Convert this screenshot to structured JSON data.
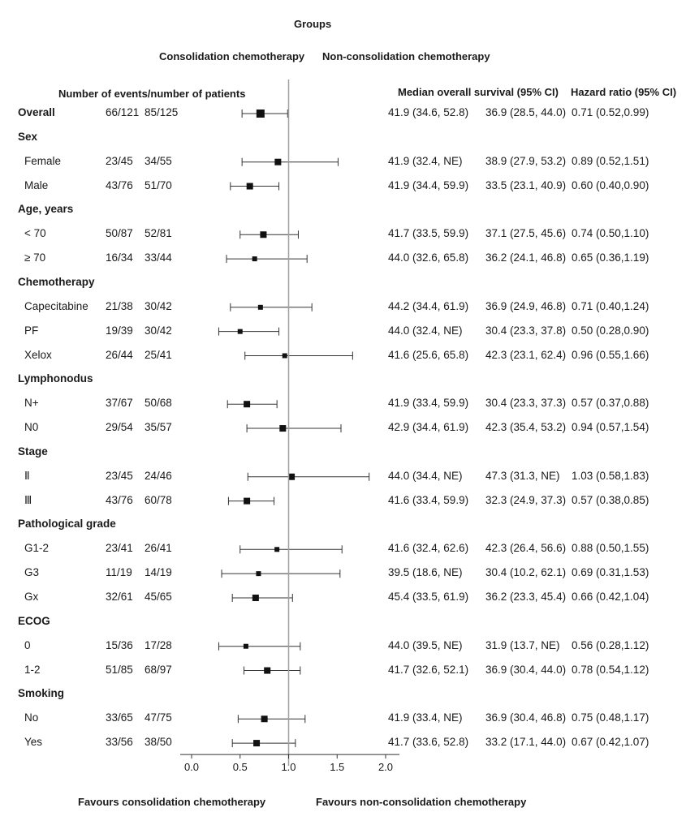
{
  "header": {
    "groups_title": "Groups",
    "consolidation_label": "Consolidation chemotherapy",
    "nonconsolidation_label": "Non-consolidation chemotherapy",
    "events_label": "Number of events/number of patients",
    "median_label": "Median overall survival (95% CI)",
    "hr_label": "Hazard ratio (95% CI)"
  },
  "footer": {
    "favours_left": "Favours consolidation chemotherapy",
    "favours_right": "Favours non-consolidation chemotherapy"
  },
  "chart_data": {
    "type": "forest",
    "xlabel": "",
    "xlim": [
      0.0,
      2.0
    ],
    "xticks": [
      "0.0",
      "0.5",
      "1.0",
      "1.5",
      "2.0"
    ],
    "reference_line": 1.0,
    "rows": [
      {
        "kind": "subgroup",
        "label": "Overall",
        "bold": true,
        "events_c": "66/121",
        "events_n": "85/125",
        "median_c": "41.9 (34.6, 52.8)",
        "median_n": "36.9 (28.5, 44.0)",
        "hr_text": "0.71 (0.52,0.99)",
        "hr": 0.71,
        "lo": 0.52,
        "hi": 0.99,
        "box": "large"
      },
      {
        "kind": "group",
        "label": "Sex"
      },
      {
        "kind": "subgroup",
        "label": "Female",
        "events_c": "23/45",
        "events_n": "34/55",
        "median_c": "41.9 (32.4, NE)",
        "median_n": "38.9 (27.9, 53.2)",
        "hr_text": "0.89 (0.52,1.51)",
        "hr": 0.89,
        "lo": 0.52,
        "hi": 1.51,
        "box": "medium"
      },
      {
        "kind": "subgroup",
        "label": "Male",
        "events_c": "43/76",
        "events_n": "51/70",
        "median_c": "41.9 (34.4, 59.9)",
        "median_n": "33.5 (23.1, 40.9)",
        "hr_text": "0.60 (0.40,0.90)",
        "hr": 0.6,
        "lo": 0.4,
        "hi": 0.9,
        "box": "medium"
      },
      {
        "kind": "group",
        "label": "Age, years"
      },
      {
        "kind": "subgroup",
        "label": "< 70",
        "events_c": "50/87",
        "events_n": "52/81",
        "median_c": "41.7 (33.5, 59.9)",
        "median_n": "37.1 (27.5, 45.6)",
        "hr_text": "0.74 (0.50,1.10)",
        "hr": 0.74,
        "lo": 0.5,
        "hi": 1.1,
        "box": "medium"
      },
      {
        "kind": "subgroup",
        "label": "≥ 70",
        "events_c": "16/34",
        "events_n": "33/44",
        "median_c": "44.0 (32.6, 65.8)",
        "median_n": "36.2 (24.1, 46.8)",
        "hr_text": "0.65 (0.36,1.19)",
        "hr": 0.65,
        "lo": 0.36,
        "hi": 1.19,
        "box": "small"
      },
      {
        "kind": "group",
        "label": "Chemotherapy"
      },
      {
        "kind": "subgroup",
        "label": "Capecitabine",
        "events_c": "21/38",
        "events_n": "30/42",
        "median_c": "44.2 (34.4, 61.9)",
        "median_n": "36.9 (24.9, 46.8)",
        "hr_text": "0.71 (0.40,1.24)",
        "hr": 0.71,
        "lo": 0.4,
        "hi": 1.24,
        "box": "small"
      },
      {
        "kind": "subgroup",
        "label": "PF",
        "events_c": "19/39",
        "events_n": "30/42",
        "median_c": "44.0 (32.4, NE)",
        "median_n": "30.4 (23.3, 37.8)",
        "hr_text": "0.50 (0.28,0.90)",
        "hr": 0.5,
        "lo": 0.28,
        "hi": 0.9,
        "box": "small"
      },
      {
        "kind": "subgroup",
        "label": "Xelox",
        "events_c": "26/44",
        "events_n": "25/41",
        "median_c": "41.6 (25.6, 65.8)",
        "median_n": "42.3 (23.1, 62.4)",
        "hr_text": "0.96 (0.55,1.66)",
        "hr": 0.96,
        "lo": 0.55,
        "hi": 1.66,
        "box": "small"
      },
      {
        "kind": "group",
        "label": "Lymphonodus"
      },
      {
        "kind": "subgroup",
        "label": "N+",
        "events_c": "37/67",
        "events_n": "50/68",
        "median_c": "41.9 (33.4, 59.9)",
        "median_n": "30.4 (23.3, 37.3)",
        "hr_text": "0.57 (0.37,0.88)",
        "hr": 0.57,
        "lo": 0.37,
        "hi": 0.88,
        "box": "medium"
      },
      {
        "kind": "subgroup",
        "label": "N0",
        "events_c": "29/54",
        "events_n": "35/57",
        "median_c": "42.9 (34.4, 61.9)",
        "median_n": "42.3 (35.4, 53.2)",
        "hr_text": "0.94 (0.57,1.54)",
        "hr": 0.94,
        "lo": 0.57,
        "hi": 1.54,
        "box": "medium"
      },
      {
        "kind": "group",
        "label": "Stage"
      },
      {
        "kind": "subgroup",
        "label": "Ⅱ",
        "events_c": "23/45",
        "events_n": "24/46",
        "median_c": "44.0 (34.4, NE)",
        "median_n": "47.3 (31.3, NE)",
        "hr_text": "1.03 (0.58,1.83)",
        "hr": 1.03,
        "lo": 0.58,
        "hi": 1.83,
        "box": "medium"
      },
      {
        "kind": "subgroup",
        "label": "Ⅲ",
        "events_c": "43/76",
        "events_n": "60/78",
        "median_c": "41.6 (33.4, 59.9)",
        "median_n": "32.3 (24.9, 37.3)",
        "hr_text": "0.57 (0.38,0.85)",
        "hr": 0.57,
        "lo": 0.38,
        "hi": 0.85,
        "box": "medium"
      },
      {
        "kind": "group",
        "label": "Pathological grade"
      },
      {
        "kind": "subgroup",
        "label": "G1-2",
        "events_c": "23/41",
        "events_n": "26/41",
        "median_c": "41.6 (32.4, 62.6)",
        "median_n": "42.3 (26.4, 56.6)",
        "hr_text": "0.88 (0.50,1.55)",
        "hr": 0.88,
        "lo": 0.5,
        "hi": 1.55,
        "box": "small"
      },
      {
        "kind": "subgroup",
        "label": "G3",
        "events_c": "11/19",
        "events_n": "14/19",
        "median_c": "39.5 (18.6, NE)",
        "median_n": "30.4 (10.2, 62.1)",
        "hr_text": "0.69 (0.31,1.53)",
        "hr": 0.69,
        "lo": 0.31,
        "hi": 1.53,
        "box": "small"
      },
      {
        "kind": "subgroup",
        "label": "Gx",
        "events_c": "32/61",
        "events_n": "45/65",
        "median_c": "45.4 (33.5, 61.9)",
        "median_n": "36.2 (23.3, 45.4)",
        "hr_text": "0.66 (0.42,1.04)",
        "hr": 0.66,
        "lo": 0.42,
        "hi": 1.04,
        "box": "medium"
      },
      {
        "kind": "group",
        "label": "ECOG"
      },
      {
        "kind": "subgroup",
        "label": "0",
        "events_c": "15/36",
        "events_n": "17/28",
        "median_c": "44.0 (39.5, NE)",
        "median_n": "31.9 (13.7, NE)",
        "hr_text": "0.56 (0.28,1.12)",
        "hr": 0.56,
        "lo": 0.28,
        "hi": 1.12,
        "box": "small"
      },
      {
        "kind": "subgroup",
        "label": "1-2",
        "events_c": "51/85",
        "events_n": "68/97",
        "median_c": "41.7 (32.6, 52.1)",
        "median_n": "36.9 (30.4, 44.0)",
        "hr_text": "0.78 (0.54,1.12)",
        "hr": 0.78,
        "lo": 0.54,
        "hi": 1.12,
        "box": "medium"
      },
      {
        "kind": "group",
        "label": "Smoking"
      },
      {
        "kind": "subgroup",
        "label": "No",
        "events_c": "33/65",
        "events_n": "47/75",
        "median_c": "41.9 (33.4, NE)",
        "median_n": "36.9 (30.4, 46.8)",
        "hr_text": "0.75 (0.48,1.17)",
        "hr": 0.75,
        "lo": 0.48,
        "hi": 1.17,
        "box": "medium"
      },
      {
        "kind": "subgroup",
        "label": "Yes",
        "events_c": "33/56",
        "events_n": "38/50",
        "median_c": "41.7 (33.6, 52.8)",
        "median_n": "33.2 (17.1, 44.0)",
        "hr_text": "0.67 (0.42,1.07)",
        "hr": 0.67,
        "lo": 0.42,
        "hi": 1.07,
        "box": "medium"
      }
    ]
  }
}
